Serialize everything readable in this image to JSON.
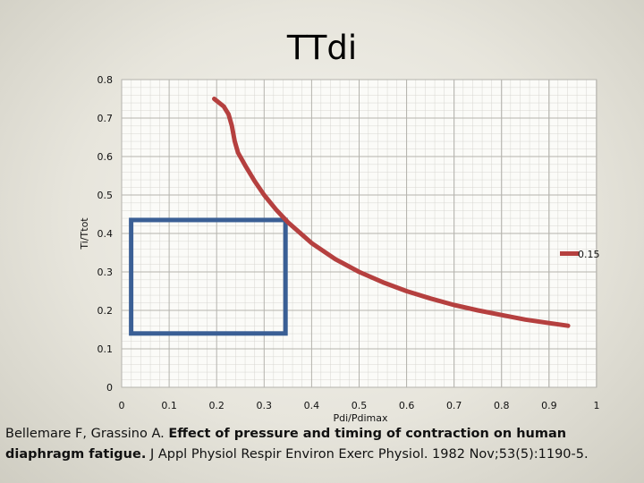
{
  "chart_data": {
    "type": "line",
    "title": "TTdi",
    "xlabel": "Pdi/Pdimax",
    "ylabel": "Ti/Ttot",
    "xlim": [
      0,
      1
    ],
    "ylim": [
      0,
      0.8
    ],
    "x_ticks": [
      "0",
      "0.1",
      "0.2",
      "0.3",
      "0.4",
      "0.5",
      "0.6",
      "0.7",
      "0.8",
      "0.9",
      "1"
    ],
    "y_ticks": [
      "0",
      "0.1",
      "0.2",
      "0.3",
      "0.4",
      "0.5",
      "0.6",
      "0.7",
      "0.8"
    ],
    "grid": true,
    "legend_position": "right",
    "series": [
      {
        "name": "0.15",
        "color": "#b5403f",
        "x": [
          0.195,
          0.205,
          0.215,
          0.225,
          0.232,
          0.238,
          0.245,
          0.26,
          0.28,
          0.3,
          0.325,
          0.35,
          0.4,
          0.45,
          0.5,
          0.55,
          0.6,
          0.65,
          0.7,
          0.75,
          0.8,
          0.85,
          0.9,
          0.94
        ],
        "y": [
          0.75,
          0.74,
          0.73,
          0.71,
          0.68,
          0.64,
          0.61,
          0.577,
          0.536,
          0.5,
          0.462,
          0.429,
          0.375,
          0.333,
          0.3,
          0.273,
          0.25,
          0.231,
          0.214,
          0.2,
          0.188,
          0.176,
          0.167,
          0.16
        ]
      }
    ],
    "annotation_rect": {
      "x0": 0.02,
      "y0": 0.14,
      "x1": 0.345,
      "y1": 0.435,
      "color": "#3a5f95"
    }
  },
  "citation": {
    "authors": "Bellemare F, Grassino A. ",
    "title": "Effect of pressure and timing of contraction on human diaphragm fatigue.",
    "source": " J Appl Physiol Respir Environ Exerc Physiol. 1982 Nov;53(5):1190-5."
  }
}
